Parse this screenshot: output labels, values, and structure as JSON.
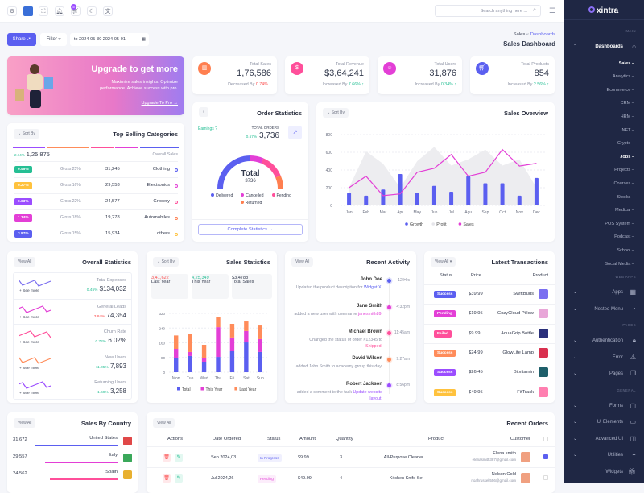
{
  "header": {
    "search_placeholder": "Search anything here ...",
    "cart_badge": "5"
  },
  "toolbar": {
    "share": "Share",
    "filter": "Filter",
    "date_range": "to 2024-05-30 2024-05-01"
  },
  "breadcrumb": {
    "parent": "Dashboards",
    "current": "Sales",
    "title": "Sales Dashboard"
  },
  "banner": {
    "title": "Upgrade to get more",
    "text": "Maximize sales insights. Optimize performance. Achieve success with pro.",
    "link": "Upgrade To Pro"
  },
  "stats": [
    {
      "label": "Total Sales",
      "value": "1,76,586",
      "trend_text": "Decreased By",
      "trend": "0.74%",
      "dir": "down",
      "color": "#ff7f50"
    },
    {
      "label": "Total Revenue",
      "value": "$3,64,241",
      "trend_text": "Increased By",
      "trend": "7.66%",
      "dir": "up",
      "color": "#ff4f9a"
    },
    {
      "label": "Total Users",
      "value": "31,876",
      "trend_text": "Increased By",
      "trend": "0.34%",
      "dir": "up",
      "color": "#e33fd6"
    },
    {
      "label": "Total Products",
      "value": "854",
      "trend_text": "Increased By",
      "trend": "2.56%",
      "dir": "up",
      "color": "#5b5ff0"
    }
  ],
  "top_selling": {
    "title": "Top Selling Categories",
    "sort": "Sort By",
    "growth": "2.74%",
    "total": "1,25,875",
    "overall": "Overall Sales",
    "rows": [
      {
        "badge": "0.45%",
        "badge_color": "#26bf94",
        "gross": "Gross 25%",
        "value": "31,245",
        "name": "Clothing",
        "dot": "#5b5ff0"
      },
      {
        "badge": "0.27%",
        "badge_color": "#ffc23d",
        "gross": "Gross 16%",
        "value": "29,553",
        "name": "Electronics",
        "dot": "#e33fd6"
      },
      {
        "badge": "0.63%",
        "badge_color": "#9b4dff",
        "gross": "Gross 22%",
        "value": "24,577",
        "name": "Grocery",
        "dot": "#ff4f9a"
      },
      {
        "badge": "1.14%",
        "badge_color": "#e33fd6",
        "gross": "Gross 18%",
        "value": "19,278",
        "name": "Automobiles",
        "dot": "#ff7f50"
      },
      {
        "badge": "3.87%",
        "badge_color": "#5b5ff0",
        "gross": "Gross 15%",
        "value": "15,934",
        "name": "others",
        "dot": "#ffc23d"
      }
    ]
  },
  "order_stats": {
    "title": "Order Statistics",
    "earnings": "Earnings ?",
    "total_orders_label": "TOTAL ORDERS",
    "growth": "0.57%",
    "total_orders": "3,736",
    "center_label": "Total",
    "center_value": "3736",
    "button": "Complete Statistics",
    "segments": [
      {
        "name": "Delivered",
        "share": 0.5,
        "color": "#5b5ff0"
      },
      {
        "name": "Cancelled",
        "share": 0.13,
        "color": "#e33fd6"
      },
      {
        "name": "Pending",
        "share": 0.24,
        "color": "#ff4f9a"
      },
      {
        "name": "Returned",
        "share": 0.13,
        "color": "#ff7f50"
      }
    ]
  },
  "chart_data": [
    {
      "type": "bar",
      "title": "Sales Overview",
      "ylim": [
        0,
        800
      ],
      "yticks": [
        0,
        200,
        400,
        600,
        800
      ],
      "grid": true,
      "legend": "bottom",
      "categories": [
        "Jan",
        "Feb",
        "Mar",
        "Apr",
        "May",
        "Jun",
        "Jul",
        "Agu",
        "Sep",
        "Oct",
        "Nov",
        "Dec"
      ],
      "series": [
        {
          "name": "Growth",
          "kind": "bar",
          "color": "#5b5ff0",
          "values": [
            140,
            110,
            180,
            355,
            140,
            220,
            155,
            330,
            250,
            250,
            110,
            310
          ]
        },
        {
          "name": "Profit",
          "kind": "area",
          "color": "#ececef",
          "values": [
            200,
            610,
            470,
            200,
            500,
            660,
            450,
            520,
            630,
            450,
            520,
            200
          ]
        },
        {
          "name": "Sales",
          "kind": "line",
          "color": "#e33fd6",
          "values": [
            200,
            330,
            110,
            130,
            375,
            420,
            575,
            330,
            375,
            630,
            445,
            475
          ]
        }
      ]
    },
    {
      "type": "bar",
      "title": "Sales Statistics",
      "stacked": true,
      "ylim": [
        0,
        320
      ],
      "yticks": [
        0,
        80,
        160,
        240,
        320
      ],
      "grid": true,
      "legend": "bottom",
      "categories": [
        "Mon",
        "Tue",
        "Wed",
        "Thu",
        "Fri",
        "Sat",
        "Sun"
      ],
      "series": [
        {
          "name": "Total",
          "color": "#5b5ff0",
          "values": [
            75,
            88,
            57,
            83,
            114,
            162,
            110
          ]
        },
        {
          "name": "This Year",
          "color": "#e33fd6",
          "values": [
            52,
            22,
            22,
            162,
            75,
            62,
            70
          ]
        },
        {
          "name": "Last Year",
          "color": "#ff8c5a",
          "values": [
            73,
            100,
            70,
            53,
            74,
            52,
            74
          ]
        }
      ]
    }
  ],
  "sales_overview": {
    "sort": "Sort By"
  },
  "overall": {
    "title": "Overall Statistics",
    "view_all": "View All",
    "see_more": "See more",
    "items": [
      {
        "label": "Total Expenses",
        "trend": "0.45%",
        "trend_color": "#26bf94",
        "value": "$134,032",
        "color": "#7b6ff0"
      },
      {
        "label": "General Leads",
        "trend": "3.84%",
        "trend_color": "#fb4d4d",
        "value": "74,354",
        "color": "#e33fd6"
      },
      {
        "label": "Churn Rate",
        "trend": "0.72%",
        "trend_color": "#26bf94",
        "value": "6.02%",
        "color": "#ff4f9a"
      },
      {
        "label": "New Users",
        "trend": "11.05%",
        "trend_color": "#26bf94",
        "value": "7,893",
        "color": "#ff8c5a"
      },
      {
        "label": "Returning Users",
        "trend": "1.69%",
        "trend_color": "#26bf94",
        "value": "3,258",
        "color": "#9b4dff"
      }
    ]
  },
  "sales_stats": {
    "sort": "Sort By",
    "boxes": [
      {
        "label": "Last Year",
        "value": "3,41,622",
        "color": "#fb4d4d"
      },
      {
        "label": "This Year",
        "value": "4,25,349",
        "color": "#26bf94"
      },
      {
        "label": "Total Sales",
        "value": "$3.4788",
        "color": "#333a4d"
      }
    ]
  },
  "activity": {
    "title": "Recent Activity",
    "view_all": "View All",
    "items": [
      {
        "name": "John Doe",
        "time": "12 Hrs",
        "text": "Updated the product description for",
        "link": "Widget X.",
        "color": "#5b5ff0"
      },
      {
        "name": "Jane Smith",
        "time": "4:32pm",
        "text": "added a new user with username",
        "link": "janesmith89.",
        "color": "#e33fd6"
      },
      {
        "name": "Michael Brown",
        "time": "11:45am",
        "text": "Changed the status of order #12345 to",
        "link": "Shipped.",
        "color": "#ff4f9a"
      },
      {
        "name": "David Wilson",
        "time": "9:27am",
        "text": "added John Smith to academy group this day.",
        "link": "",
        "color": "#ff8c5a"
      },
      {
        "name": "Robert Jackson",
        "time": "8:56pm",
        "text": "added a comment to the task",
        "link": "Update website layout.",
        "color": "#9b4dff"
      }
    ]
  },
  "transactions": {
    "title": "Latest Transactions",
    "view_all": "View All",
    "headers": [
      "Status",
      "Price",
      "Product"
    ],
    "rows": [
      {
        "status": "Success",
        "status_color": "#5b5ff0",
        "price": "$39.99",
        "product": "SwiftBuds",
        "thumb": "#7b6ff0"
      },
      {
        "status": "Pending",
        "status_color": "#e33fd6",
        "price": "$19.95",
        "product": "CozyCloud Pillow",
        "thumb": "#e8a6d8"
      },
      {
        "status": "Failed",
        "status_color": "#ff4f9a",
        "price": "$9.99",
        "product": "AquaGrip Bottle",
        "thumb": "#2a2f7a"
      },
      {
        "status": "Success",
        "status_color": "#ff8c5a",
        "price": "$24.99",
        "product": "GlowLite Lamp",
        "thumb": "#d9304f"
      },
      {
        "status": "Success",
        "status_color": "#9b4dff",
        "price": "$26.45",
        "product": "Bitvitamin",
        "thumb": "#1e5f6a"
      },
      {
        "status": "Success",
        "status_color": "#ffc23d",
        "price": "$49.95",
        "product": "FitTrack",
        "thumb": "#ff7fb0"
      }
    ]
  },
  "country": {
    "title": "Sales By Country",
    "view_all": "View All",
    "rows": [
      {
        "value": "31,672",
        "name": "United States",
        "share": 0.85,
        "color": "#5b5ff0"
      },
      {
        "value": "29,557",
        "name": "Italy",
        "share": 0.75,
        "color": "#e33fd6"
      },
      {
        "value": "24,562",
        "name": "Spain",
        "share": 0.7,
        "color": "#ff4f9a"
      }
    ]
  },
  "orders": {
    "title": "Recent Orders",
    "view_all": "View All",
    "headers": [
      "Actions",
      "Date Ordered",
      "Status",
      "Amount",
      "Quantity",
      "Product",
      "Customer"
    ],
    "rows": [
      {
        "date": "Sep 2024,03",
        "status": "In Progress",
        "status_color": "#5b5ff0",
        "amount": "$9.99",
        "qty": "3",
        "product": "All-Purpose Cleaner",
        "name": "Elena smith",
        "email": "elenasmith387@gmail.com",
        "checked": true
      },
      {
        "date": "Jul 2024,26",
        "status": "Pending",
        "status_color": "#e33fd6",
        "amount": "$49.99",
        "qty": "4",
        "product": "Kitchen Knife Set",
        "name": "Nelson Gold",
        "email": "noahrussell556@gmail.com",
        "checked": false
      }
    ]
  },
  "sidebar": {
    "logo": "xintra",
    "items": [
      {
        "t": "h",
        "label": "MAIN"
      },
      {
        "t": "m",
        "label": "Dashboards",
        "icon": "⌂",
        "open": true
      },
      {
        "t": "s",
        "label": "Sales",
        "active": true
      },
      {
        "t": "s",
        "label": "Analytics"
      },
      {
        "t": "s",
        "label": "Ecommerce"
      },
      {
        "t": "s",
        "label": "CRM"
      },
      {
        "t": "s",
        "label": "HRM"
      },
      {
        "t": "s",
        "label": "NFT"
      },
      {
        "t": "s",
        "label": "Crypto"
      },
      {
        "t": "s",
        "label": "Jobs",
        "active": true
      },
      {
        "t": "s",
        "label": "Projects"
      },
      {
        "t": "s",
        "label": "Courses"
      },
      {
        "t": "s",
        "label": "Stocks"
      },
      {
        "t": "s",
        "label": "Medical"
      },
      {
        "t": "s",
        "label": "POS System"
      },
      {
        "t": "s",
        "label": "Podcast"
      },
      {
        "t": "s",
        "label": "School"
      },
      {
        "t": "s",
        "label": "Social Media"
      },
      {
        "t": "h",
        "label": "WEB APPS"
      },
      {
        "t": "m",
        "label": "Apps",
        "icon": "▦"
      },
      {
        "t": "m",
        "label": "Nested Menu",
        "icon": "◔"
      },
      {
        "t": "h",
        "label": "PAGES"
      },
      {
        "t": "m",
        "label": "Authentication",
        "icon": "🔒︎"
      },
      {
        "t": "m",
        "label": "Error",
        "icon": "⚠︎"
      },
      {
        "t": "m",
        "label": "Pages",
        "icon": "❐"
      },
      {
        "t": "h",
        "label": "GENERAL"
      },
      {
        "t": "m",
        "label": "Forms",
        "icon": "▢"
      },
      {
        "t": "m",
        "label": "Ui Elements",
        "icon": "▭"
      },
      {
        "t": "m",
        "label": "Advanced UI",
        "icon": "◫"
      },
      {
        "t": "m",
        "label": "Utilities",
        "icon": "◓"
      },
      {
        "t": "m",
        "label": "Widgets",
        "icon": "🎁︎",
        "nochev": true
      }
    ]
  }
}
